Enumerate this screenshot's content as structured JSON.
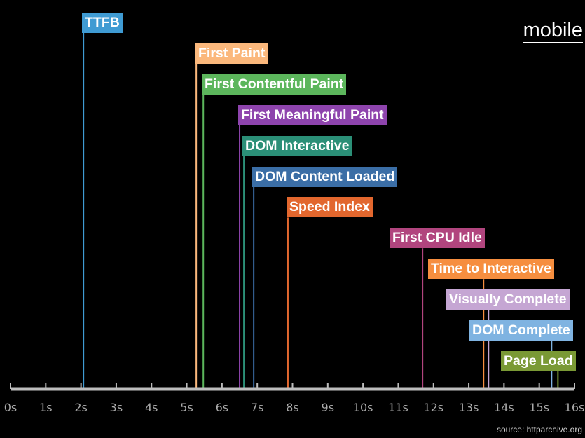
{
  "badge": "mobile",
  "source": "source: httparchive.org",
  "chart_data": {
    "type": "timeline",
    "x_unit": "s",
    "xlim": [
      0,
      16
    ],
    "x_ticks": [
      "0s",
      "1s",
      "2s",
      "3s",
      "4s",
      "5s",
      "6s",
      "7s",
      "8s",
      "9s",
      "10s",
      "11s",
      "12s",
      "13s",
      "14s",
      "15s",
      "16s"
    ],
    "grid": false,
    "markers": [
      {
        "name": "TTFB",
        "value": 2.07,
        "color": "#3f9bd3"
      },
      {
        "name": "First Paint",
        "value": 5.27,
        "color": "#fbb87c"
      },
      {
        "name": "First Contentful Paint",
        "value": 5.47,
        "color": "#5cb65c"
      },
      {
        "name": "First Meaningful Paint",
        "value": 6.5,
        "color": "#8e44ad"
      },
      {
        "name": "DOM Interactive",
        "value": 6.62,
        "color": "#2b8f77"
      },
      {
        "name": "DOM Content Loaded",
        "value": 6.9,
        "color": "#3b6ea6"
      },
      {
        "name": "Speed Index",
        "value": 7.87,
        "color": "#e2672e"
      },
      {
        "name": "First CPU Idle",
        "value": 11.69,
        "color": "#b1457e"
      },
      {
        "name": "Time to Interactive",
        "value": 13.42,
        "color": "#f68e3f"
      },
      {
        "name": "Visually Complete",
        "value": 13.56,
        "color": "#c5a6d3"
      },
      {
        "name": "DOM Complete",
        "value": 15.35,
        "color": "#7fb3e1"
      },
      {
        "name": "Page Load",
        "value": 15.53,
        "color": "#7a9935"
      }
    ]
  }
}
